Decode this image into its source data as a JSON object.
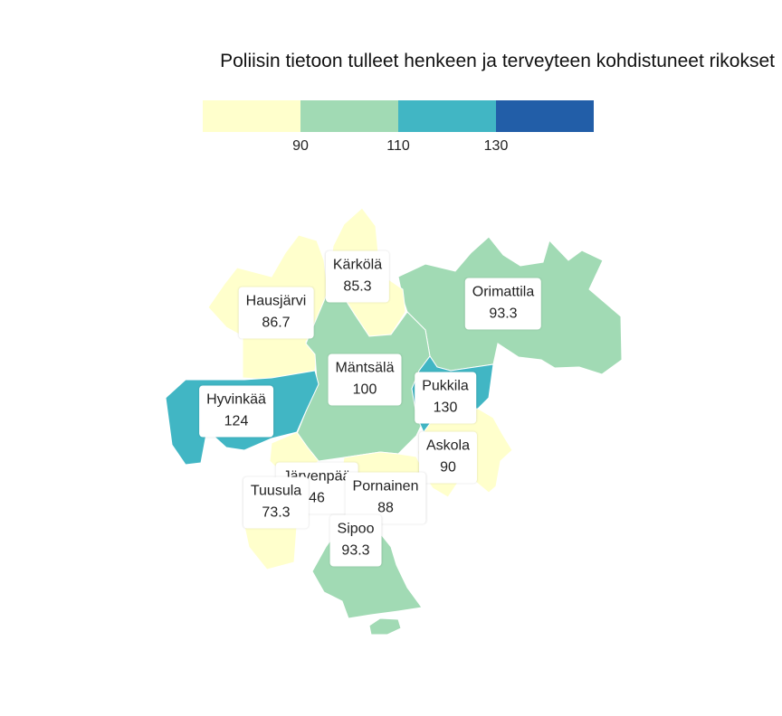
{
  "title": "Poliisin tietoon tulleet henkeen ja terveyteen kohdistuneet rikokset",
  "legend": {
    "breaks": [
      "90",
      "110",
      "130"
    ],
    "colors": [
      "#ffffcc",
      "#a1dab4",
      "#41b6c4",
      "#225ea8"
    ]
  },
  "regions": [
    {
      "name": "Kärkölä",
      "value": "85.3",
      "color": "#ffffcc"
    },
    {
      "name": "Hausjärvi",
      "value": "86.7",
      "color": "#ffffcc"
    },
    {
      "name": "Orimattila",
      "value": "93.3",
      "color": "#a1dab4"
    },
    {
      "name": "Mäntsälä",
      "value": "100",
      "color": "#a1dab4"
    },
    {
      "name": "Pukkila",
      "value": "130",
      "color": "#41b6c4"
    },
    {
      "name": "Hyvinkää",
      "value": "124",
      "color": "#41b6c4"
    },
    {
      "name": "Askola",
      "value": "90",
      "color": "#ffffcc"
    },
    {
      "name": "Järvenpää",
      "value": "46",
      "color": "#ffffcc"
    },
    {
      "name": "Tuusula",
      "value": "73.3",
      "color": "#ffffcc"
    },
    {
      "name": "Pornainen",
      "value": "88",
      "color": "#ffffcc"
    },
    {
      "name": "Sipoo",
      "value": "93.3",
      "color": "#a1dab4"
    }
  ]
}
